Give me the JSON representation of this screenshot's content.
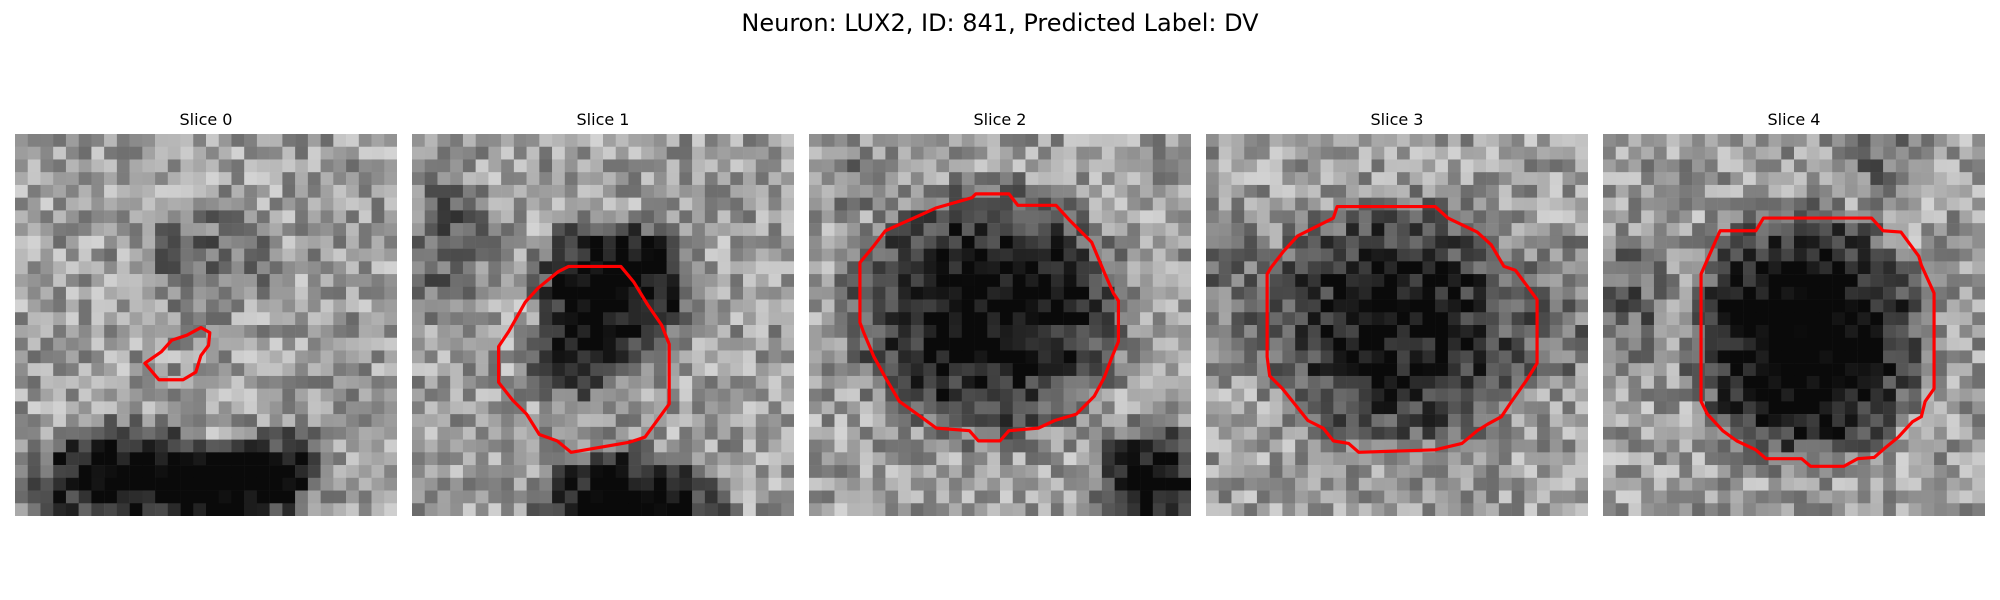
{
  "figure": {
    "title": "Neuron: LUX2, ID: 841, Predicted Label: DV"
  },
  "panels": [
    {
      "title": "Slice 0"
    },
    {
      "title": "Slice 1"
    },
    {
      "title": "Slice 2"
    },
    {
      "title": "Slice 3"
    },
    {
      "title": "Slice 4"
    }
  ],
  "style": {
    "contour_color": "#ff0000",
    "colormap": "grayscale"
  }
}
